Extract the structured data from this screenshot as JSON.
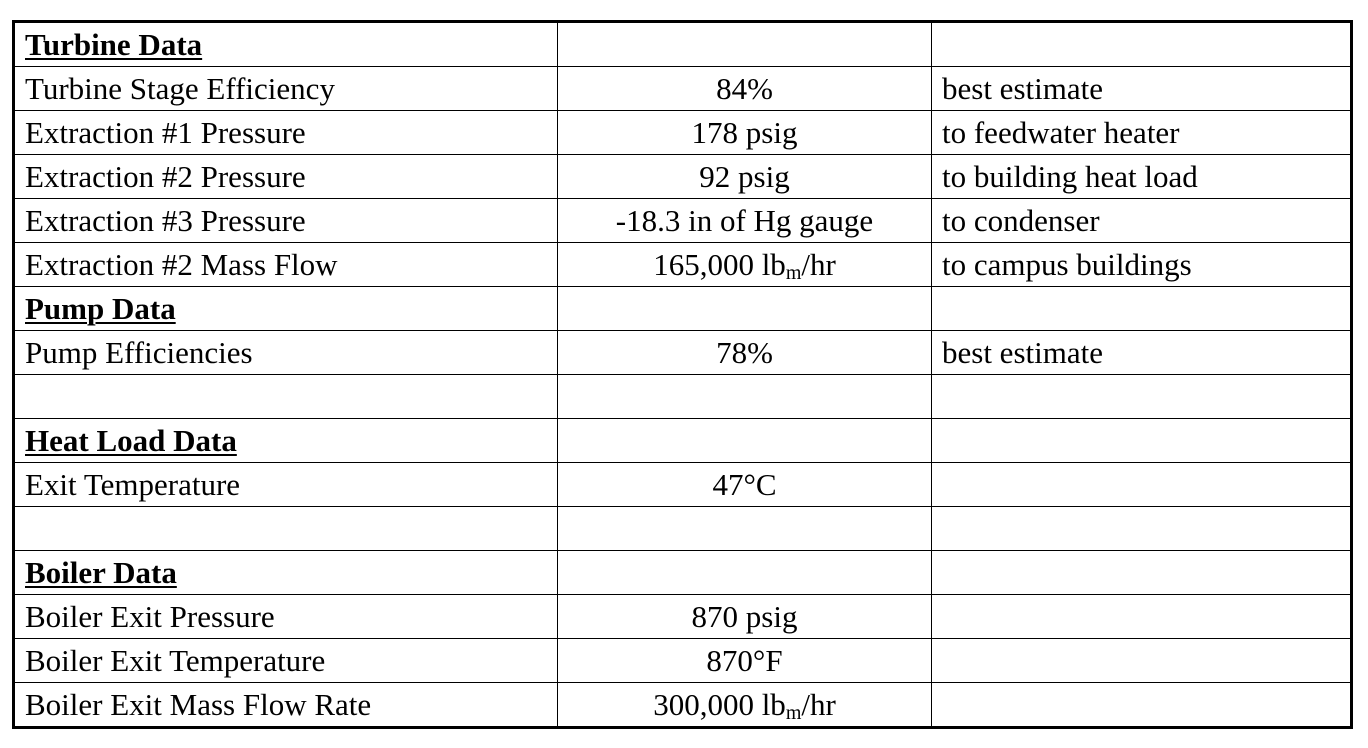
{
  "sections": [
    {
      "title": "Turbine Data",
      "rows": [
        {
          "label": "Turbine Stage Efficiency",
          "value": "84%",
          "note": "best estimate"
        },
        {
          "label": "Extraction #1 Pressure",
          "value": "178 psig",
          "note": "to feedwater heater"
        },
        {
          "label": "Extraction #2 Pressure",
          "value": "92 psig",
          "note": "to building heat load"
        },
        {
          "label": "Extraction #3 Pressure",
          "value": "-18.3 in of Hg gauge",
          "note": "to condenser"
        },
        {
          "label": "Extraction #2 Mass Flow",
          "value": "165,000 lb",
          "value_sub": "m",
          "value_suffix": "/hr",
          "note": "to campus buildings"
        }
      ]
    },
    {
      "title": "Pump Data",
      "rows": [
        {
          "label": "Pump Efficiencies",
          "value": "78%",
          "note": "best estimate"
        },
        {
          "label": "",
          "value": "",
          "note": ""
        }
      ]
    },
    {
      "title": "Heat Load Data",
      "rows": [
        {
          "label": "Exit Temperature",
          "value": "47°C",
          "note": ""
        },
        {
          "label": "",
          "value": "",
          "note": ""
        }
      ]
    },
    {
      "title": "Boiler Data",
      "rows": [
        {
          "label": "Boiler Exit Pressure",
          "value": "870 psig",
          "note": ""
        },
        {
          "label": "Boiler Exit Temperature",
          "value": "870°F",
          "note": ""
        },
        {
          "label": "Boiler Exit Mass Flow Rate",
          "value": "300,000 lb",
          "value_sub": "m",
          "value_suffix": "/hr",
          "note": ""
        }
      ]
    }
  ]
}
